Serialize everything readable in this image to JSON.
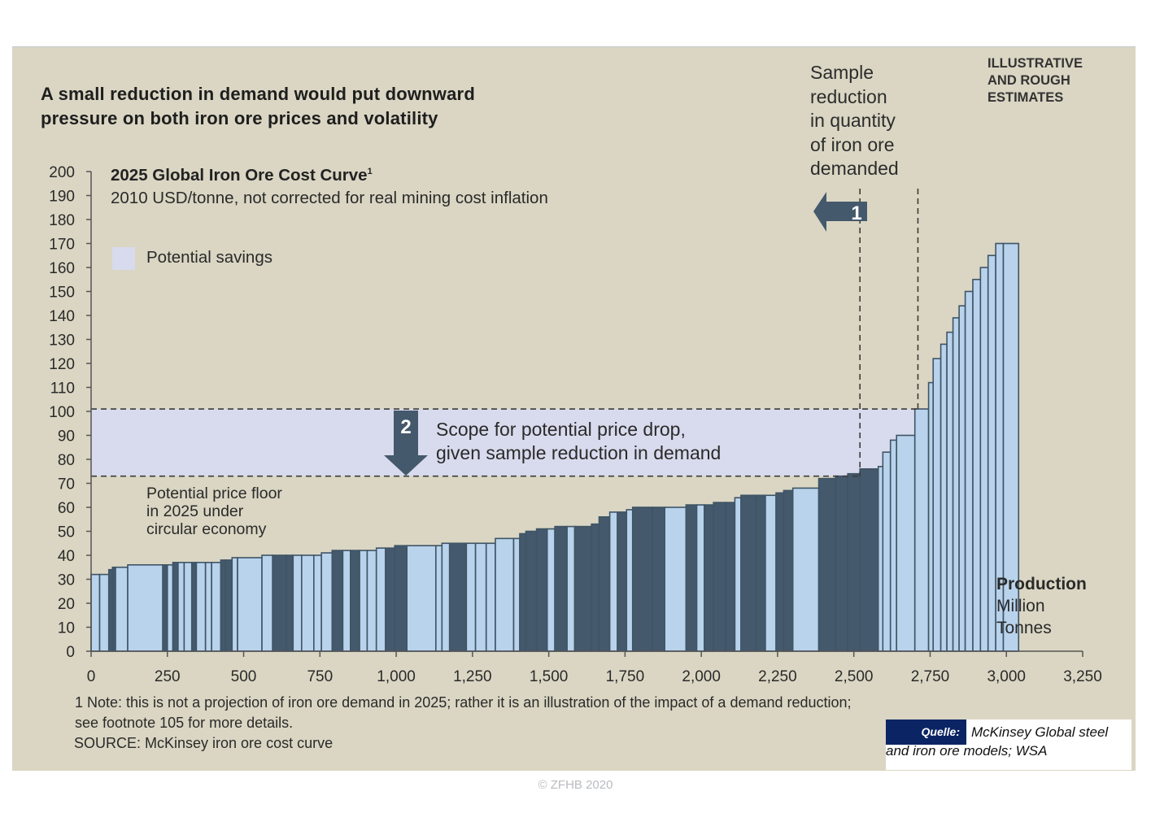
{
  "headline": {
    "line1": "A small reduction in demand would put downward",
    "line2": "pressure on both iron ore prices and volatility"
  },
  "badge": {
    "line1": "ILLUSTRATIVE",
    "line2": "AND ROUGH",
    "line3": "ESTIMATES"
  },
  "sample_note": [
    "Sample",
    "reduction",
    "in quantity",
    "of iron ore",
    "demanded"
  ],
  "legend": {
    "label": "Potential savings",
    "color": "#d8dbed"
  },
  "floor_note": [
    "Potential price floor",
    "in 2025 under",
    "circular economy"
  ],
  "scope_note": [
    "Scope for potential price drop,",
    "given sample reduction in demand"
  ],
  "x_axis_label": {
    "line1": "Production",
    "line2": "Million",
    "line3": "Tonnes"
  },
  "footnote": {
    "line1": "1 Note: this is not a projection of iron ore demand in 2025; rather it is an illustration of the impact of a demand reduction;",
    "line2": "see footnote 105 for more details."
  },
  "source": "SOURCE: McKinsey iron ore cost curve",
  "quelle": {
    "tag": "Quelle:",
    "line1": "McKinsey Global steel",
    "line2": "and iron ore models; WSA"
  },
  "copyright": "© ZFHB 2020",
  "colors": {
    "background": "#dad6c3",
    "bar_light": "#b9d3ec",
    "bar_dark": "#45596c",
    "bar_edge": "#3f5466",
    "savings_band": "#d8dbed",
    "arrow": "#45596c",
    "quelle_tag": "#0b2463"
  },
  "chart_data": {
    "type": "bar",
    "subtype": "cost-curve (variable-width step bars)",
    "title": "2025 Global Iron Ore Cost Curve",
    "title_superscript": "1",
    "subtitle": "2010 USD/tonne, not corrected for real mining cost inflation",
    "xlabel": "Production Million Tonnes",
    "ylabel": "2010 USD/tonne",
    "xlim": [
      0,
      3250
    ],
    "ylim": [
      0,
      200
    ],
    "x_ticks": [
      "0",
      "250",
      "500",
      "750",
      "1,000",
      "1,250",
      "1,500",
      "1,750",
      "2,000",
      "2,250",
      "2,500",
      "2,750",
      "3,000",
      "3,250"
    ],
    "x_tick_values": [
      0,
      250,
      500,
      750,
      1000,
      1250,
      1500,
      1750,
      2000,
      2250,
      2500,
      2750,
      3000,
      3250
    ],
    "y_ticks": [
      "0",
      "10",
      "20",
      "30",
      "40",
      "50",
      "60",
      "70",
      "80",
      "90",
      "100",
      "110",
      "120",
      "130",
      "140",
      "150",
      "160",
      "170",
      "180",
      "190",
      "200"
    ],
    "y_tick_values": [
      0,
      10,
      20,
      30,
      40,
      50,
      60,
      70,
      80,
      90,
      100,
      110,
      120,
      130,
      140,
      150,
      160,
      170,
      180,
      190,
      200
    ],
    "legend": [
      "Potential savings"
    ],
    "savings_band": {
      "from_cost": 73,
      "to_cost": 101
    },
    "demand_reduction": {
      "from_x": 2520,
      "to_x": 2710,
      "marker": "1"
    },
    "price_drop_marker": "2",
    "bars": [
      {
        "x0": 0,
        "x1": 28,
        "cost": 32,
        "tone": "light"
      },
      {
        "x0": 28,
        "x1": 58,
        "cost": 32,
        "tone": "light"
      },
      {
        "x0": 58,
        "x1": 70,
        "cost": 34,
        "tone": "dark"
      },
      {
        "x0": 70,
        "x1": 80,
        "cost": 35,
        "tone": "dark"
      },
      {
        "x0": 80,
        "x1": 120,
        "cost": 35,
        "tone": "light"
      },
      {
        "x0": 120,
        "x1": 235,
        "cost": 36,
        "tone": "light"
      },
      {
        "x0": 235,
        "x1": 250,
        "cost": 36,
        "tone": "dark"
      },
      {
        "x0": 250,
        "x1": 268,
        "cost": 36,
        "tone": "light"
      },
      {
        "x0": 268,
        "x1": 285,
        "cost": 37,
        "tone": "dark"
      },
      {
        "x0": 285,
        "x1": 305,
        "cost": 37,
        "tone": "light"
      },
      {
        "x0": 305,
        "x1": 330,
        "cost": 37,
        "tone": "light"
      },
      {
        "x0": 330,
        "x1": 345,
        "cost": 37,
        "tone": "dark"
      },
      {
        "x0": 345,
        "x1": 375,
        "cost": 37,
        "tone": "light"
      },
      {
        "x0": 375,
        "x1": 395,
        "cost": 37,
        "tone": "light"
      },
      {
        "x0": 395,
        "x1": 425,
        "cost": 37,
        "tone": "light"
      },
      {
        "x0": 425,
        "x1": 440,
        "cost": 38,
        "tone": "dark"
      },
      {
        "x0": 440,
        "x1": 462,
        "cost": 38,
        "tone": "dark"
      },
      {
        "x0": 462,
        "x1": 480,
        "cost": 39,
        "tone": "light"
      },
      {
        "x0": 480,
        "x1": 560,
        "cost": 39,
        "tone": "light"
      },
      {
        "x0": 560,
        "x1": 595,
        "cost": 40,
        "tone": "light"
      },
      {
        "x0": 595,
        "x1": 640,
        "cost": 40,
        "tone": "dark"
      },
      {
        "x0": 640,
        "x1": 662,
        "cost": 40,
        "tone": "dark"
      },
      {
        "x0": 662,
        "x1": 690,
        "cost": 40,
        "tone": "light"
      },
      {
        "x0": 690,
        "x1": 730,
        "cost": 40,
        "tone": "light"
      },
      {
        "x0": 730,
        "x1": 755,
        "cost": 40,
        "tone": "light"
      },
      {
        "x0": 755,
        "x1": 790,
        "cost": 41,
        "tone": "light"
      },
      {
        "x0": 790,
        "x1": 825,
        "cost": 42,
        "tone": "dark"
      },
      {
        "x0": 825,
        "x1": 850,
        "cost": 42,
        "tone": "light"
      },
      {
        "x0": 850,
        "x1": 880,
        "cost": 42,
        "tone": "dark"
      },
      {
        "x0": 880,
        "x1": 905,
        "cost": 42,
        "tone": "light"
      },
      {
        "x0": 905,
        "x1": 935,
        "cost": 42,
        "tone": "light"
      },
      {
        "x0": 935,
        "x1": 965,
        "cost": 43,
        "tone": "light"
      },
      {
        "x0": 965,
        "x1": 995,
        "cost": 43,
        "tone": "dark"
      },
      {
        "x0": 995,
        "x1": 1035,
        "cost": 44,
        "tone": "dark"
      },
      {
        "x0": 1035,
        "x1": 1130,
        "cost": 44,
        "tone": "light"
      },
      {
        "x0": 1130,
        "x1": 1150,
        "cost": 44,
        "tone": "light"
      },
      {
        "x0": 1150,
        "x1": 1175,
        "cost": 45,
        "tone": "light"
      },
      {
        "x0": 1175,
        "x1": 1230,
        "cost": 45,
        "tone": "dark"
      },
      {
        "x0": 1230,
        "x1": 1260,
        "cost": 45,
        "tone": "light"
      },
      {
        "x0": 1260,
        "x1": 1295,
        "cost": 45,
        "tone": "light"
      },
      {
        "x0": 1295,
        "x1": 1325,
        "cost": 45,
        "tone": "light"
      },
      {
        "x0": 1325,
        "x1": 1385,
        "cost": 47,
        "tone": "light"
      },
      {
        "x0": 1385,
        "x1": 1405,
        "cost": 47,
        "tone": "light"
      },
      {
        "x0": 1405,
        "x1": 1425,
        "cost": 49,
        "tone": "dark"
      },
      {
        "x0": 1425,
        "x1": 1460,
        "cost": 50,
        "tone": "dark"
      },
      {
        "x0": 1460,
        "x1": 1495,
        "cost": 51,
        "tone": "dark"
      },
      {
        "x0": 1495,
        "x1": 1520,
        "cost": 51,
        "tone": "light"
      },
      {
        "x0": 1520,
        "x1": 1560,
        "cost": 52,
        "tone": "dark"
      },
      {
        "x0": 1560,
        "x1": 1585,
        "cost": 52,
        "tone": "light"
      },
      {
        "x0": 1585,
        "x1": 1640,
        "cost": 52,
        "tone": "dark"
      },
      {
        "x0": 1640,
        "x1": 1665,
        "cost": 53,
        "tone": "dark"
      },
      {
        "x0": 1665,
        "x1": 1700,
        "cost": 56,
        "tone": "dark"
      },
      {
        "x0": 1700,
        "x1": 1725,
        "cost": 58,
        "tone": "light"
      },
      {
        "x0": 1725,
        "x1": 1755,
        "cost": 58,
        "tone": "dark"
      },
      {
        "x0": 1755,
        "x1": 1775,
        "cost": 59,
        "tone": "light"
      },
      {
        "x0": 1775,
        "x1": 1840,
        "cost": 60,
        "tone": "dark"
      },
      {
        "x0": 1840,
        "x1": 1880,
        "cost": 60,
        "tone": "dark"
      },
      {
        "x0": 1880,
        "x1": 1950,
        "cost": 60,
        "tone": "light"
      },
      {
        "x0": 1950,
        "x1": 1985,
        "cost": 61,
        "tone": "dark"
      },
      {
        "x0": 1985,
        "x1": 2010,
        "cost": 61,
        "tone": "light"
      },
      {
        "x0": 2010,
        "x1": 2040,
        "cost": 61,
        "tone": "dark"
      },
      {
        "x0": 2040,
        "x1": 2080,
        "cost": 62,
        "tone": "dark"
      },
      {
        "x0": 2080,
        "x1": 2110,
        "cost": 62,
        "tone": "dark"
      },
      {
        "x0": 2110,
        "x1": 2130,
        "cost": 64,
        "tone": "light"
      },
      {
        "x0": 2130,
        "x1": 2180,
        "cost": 65,
        "tone": "dark"
      },
      {
        "x0": 2180,
        "x1": 2210,
        "cost": 65,
        "tone": "dark"
      },
      {
        "x0": 2210,
        "x1": 2245,
        "cost": 65,
        "tone": "light"
      },
      {
        "x0": 2245,
        "x1": 2270,
        "cost": 66,
        "tone": "dark"
      },
      {
        "x0": 2270,
        "x1": 2300,
        "cost": 67,
        "tone": "dark"
      },
      {
        "x0": 2300,
        "x1": 2385,
        "cost": 68,
        "tone": "light"
      },
      {
        "x0": 2385,
        "x1": 2440,
        "cost": 72,
        "tone": "dark"
      },
      {
        "x0": 2440,
        "x1": 2480,
        "cost": 73,
        "tone": "dark"
      },
      {
        "x0": 2480,
        "x1": 2520,
        "cost": 74,
        "tone": "dark"
      },
      {
        "x0": 2520,
        "x1": 2580,
        "cost": 76,
        "tone": "dark"
      },
      {
        "x0": 2580,
        "x1": 2595,
        "cost": 77,
        "tone": "light"
      },
      {
        "x0": 2595,
        "x1": 2620,
        "cost": 83,
        "tone": "light"
      },
      {
        "x0": 2620,
        "x1": 2640,
        "cost": 88,
        "tone": "light"
      },
      {
        "x0": 2640,
        "x1": 2700,
        "cost": 90,
        "tone": "light"
      },
      {
        "x0": 2700,
        "x1": 2745,
        "cost": 101,
        "tone": "light"
      },
      {
        "x0": 2745,
        "x1": 2760,
        "cost": 112,
        "tone": "light"
      },
      {
        "x0": 2760,
        "x1": 2785,
        "cost": 122,
        "tone": "light"
      },
      {
        "x0": 2785,
        "x1": 2805,
        "cost": 128,
        "tone": "light"
      },
      {
        "x0": 2805,
        "x1": 2825,
        "cost": 133,
        "tone": "light"
      },
      {
        "x0": 2825,
        "x1": 2845,
        "cost": 139,
        "tone": "light"
      },
      {
        "x0": 2845,
        "x1": 2865,
        "cost": 144,
        "tone": "light"
      },
      {
        "x0": 2865,
        "x1": 2890,
        "cost": 150,
        "tone": "light"
      },
      {
        "x0": 2890,
        "x1": 2915,
        "cost": 155,
        "tone": "light"
      },
      {
        "x0": 2915,
        "x1": 2940,
        "cost": 160,
        "tone": "light"
      },
      {
        "x0": 2940,
        "x1": 2965,
        "cost": 165,
        "tone": "light"
      },
      {
        "x0": 2965,
        "x1": 2990,
        "cost": 170,
        "tone": "light"
      },
      {
        "x0": 2990,
        "x1": 3040,
        "cost": 170,
        "tone": "light"
      }
    ]
  }
}
